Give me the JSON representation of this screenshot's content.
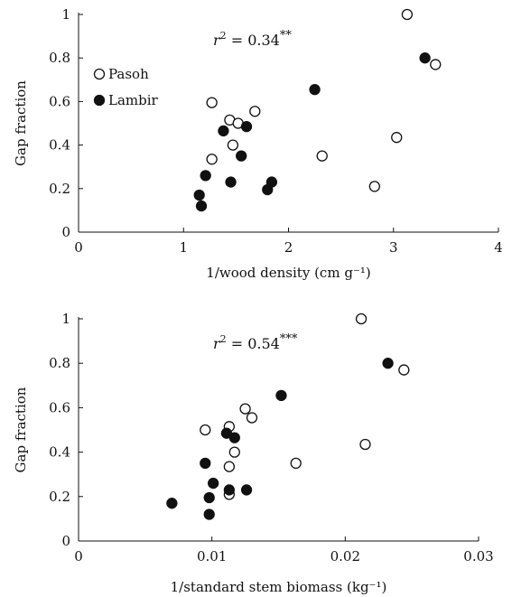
{
  "chart_data": [
    {
      "type": "scatter",
      "xlabel": "1/wood density (cm g⁻¹)",
      "ylabel": "Gap fraction",
      "xlim": [
        0,
        4
      ],
      "ylim": [
        0,
        1
      ],
      "xticks": [
        "0",
        "1",
        "2",
        "3",
        "4"
      ],
      "yticks": [
        "0",
        "0.2",
        "0.4",
        "0.6",
        "0.8",
        "1"
      ],
      "annotation": {
        "base": "r",
        "exp": "2",
        "rest": " = 0.34",
        "sig": "**"
      },
      "legend": {
        "position": "top-left"
      },
      "grid": false,
      "series": [
        {
          "name": "Pasoh",
          "marker": "open",
          "points": [
            [
              3.13,
              1.0
            ],
            [
              3.4,
              0.77
            ],
            [
              1.27,
              0.595
            ],
            [
              1.68,
              0.555
            ],
            [
              1.44,
              0.515
            ],
            [
              1.52,
              0.5
            ],
            [
              1.47,
              0.4
            ],
            [
              1.27,
              0.335
            ],
            [
              3.03,
              0.435
            ],
            [
              2.32,
              0.35
            ],
            [
              2.82,
              0.21
            ]
          ]
        },
        {
          "name": "Lambir",
          "marker": "filled",
          "points": [
            [
              3.3,
              0.8
            ],
            [
              2.25,
              0.655
            ],
            [
              1.6,
              0.485
            ],
            [
              1.38,
              0.465
            ],
            [
              1.55,
              0.35
            ],
            [
              1.21,
              0.26
            ],
            [
              1.45,
              0.23
            ],
            [
              1.84,
              0.23
            ],
            [
              1.8,
              0.195
            ],
            [
              1.15,
              0.17
            ],
            [
              1.17,
              0.12
            ]
          ]
        }
      ]
    },
    {
      "type": "scatter",
      "xlabel": "1/standard stem biomass (kg⁻¹)",
      "ylabel": "Gap fraction",
      "xlim": [
        0,
        0.03
      ],
      "ylim": [
        0,
        1
      ],
      "xticks": [
        "0",
        "0.01",
        "0.02",
        "0.03"
      ],
      "yticks": [
        "0",
        "0.2",
        "0.4",
        "0.6",
        "0.8",
        "1"
      ],
      "annotation": {
        "base": "r",
        "exp": "2",
        "rest": " = 0.54",
        "sig": "***"
      },
      "grid": false,
      "series": [
        {
          "name": "Pasoh",
          "marker": "open",
          "points": [
            [
              0.0212,
              1.0
            ],
            [
              0.0244,
              0.77
            ],
            [
              0.0125,
              0.595
            ],
            [
              0.013,
              0.555
            ],
            [
              0.0113,
              0.515
            ],
            [
              0.0095,
              0.5
            ],
            [
              0.0117,
              0.4
            ],
            [
              0.0113,
              0.335
            ],
            [
              0.0215,
              0.435
            ],
            [
              0.0163,
              0.35
            ],
            [
              0.0113,
              0.21
            ]
          ]
        },
        {
          "name": "Lambir",
          "marker": "filled",
          "points": [
            [
              0.0232,
              0.8
            ],
            [
              0.0152,
              0.655
            ],
            [
              0.0111,
              0.485
            ],
            [
              0.0117,
              0.465
            ],
            [
              0.0095,
              0.35
            ],
            [
              0.0101,
              0.26
            ],
            [
              0.0113,
              0.23
            ],
            [
              0.0126,
              0.23
            ],
            [
              0.0098,
              0.195
            ],
            [
              0.007,
              0.17
            ],
            [
              0.0098,
              0.12
            ]
          ]
        }
      ]
    }
  ]
}
